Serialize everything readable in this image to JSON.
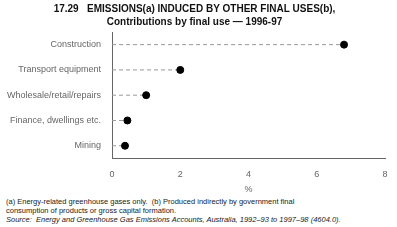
{
  "chart_data": {
    "type": "dot",
    "orientation": "horizontal",
    "title": "17.29   EMISSIONS(a) INDUCED BY OTHER FINAL USES(b),",
    "subtitle": "Contributions by final use — 1996-97",
    "categories": [
      "Construction",
      "Transport equipment",
      "Wholesale/retail/repairs",
      "Finance, dwellings etc.",
      "Mining"
    ],
    "values": [
      6.8,
      2.0,
      1.0,
      0.45,
      0.38
    ],
    "xlabel": "%",
    "xlim": [
      0,
      8
    ],
    "xticks": [
      0,
      2,
      4,
      6,
      8
    ],
    "color": "#000000",
    "line_style": "dashed",
    "grid": false,
    "annotations": [
      "(a) Energy-related greenhouse gases only.  (b) Produced indirectly by government final",
      "consumption of products or gross capital formation.",
      "Source:  Energy and Greenhouse Gas Emissions Accounts, Australia, 1992–93 to 1997–98 (4604.0)."
    ]
  }
}
